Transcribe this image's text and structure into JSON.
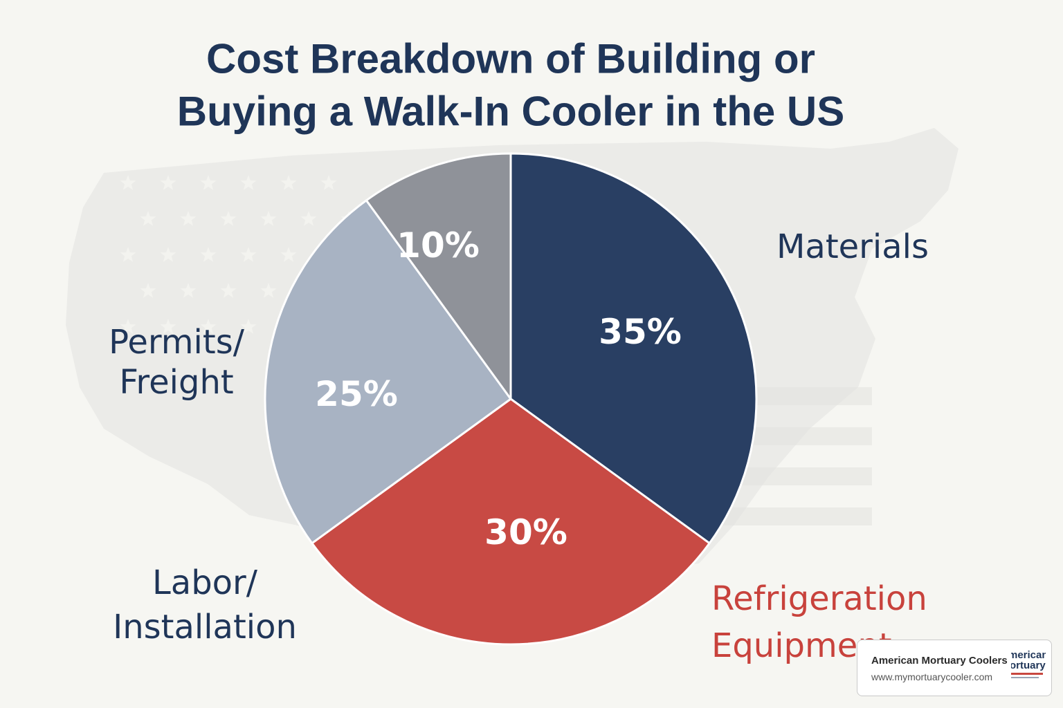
{
  "chart_data": {
    "type": "pie",
    "title_lines": [
      "Cost Breakdown of Building or",
      "Buying a Walk-In Cooler in the US"
    ],
    "slices": [
      {
        "label_lines": [
          "Materials"
        ],
        "value": 35,
        "value_label": "35%",
        "color": "#293f63",
        "label_color": "#1f3558"
      },
      {
        "label_lines": [
          "Refrigeration",
          "Equipment"
        ],
        "value": 30,
        "value_label": "30%",
        "color": "#c84a44",
        "label_color": "#c8423c"
      },
      {
        "label_lines": [
          "Labor/",
          "Installation"
        ],
        "value": 25,
        "value_label": "25%",
        "color": "#a8b3c3",
        "label_color": "#1f3558"
      },
      {
        "label_lines": [
          "Permits/",
          "Freight"
        ],
        "value": 10,
        "value_label": "10%",
        "color": "#8f9299",
        "label_color": "#1f3558"
      }
    ]
  },
  "watermark": {
    "name": "American Mortuary Coolers",
    "url": "www.mymortuarycooler.com",
    "logo_text": [
      "merican",
      "ortuary"
    ]
  },
  "background": {
    "map_color": "#e9e9e6",
    "page_color": "#f6f6f2"
  }
}
